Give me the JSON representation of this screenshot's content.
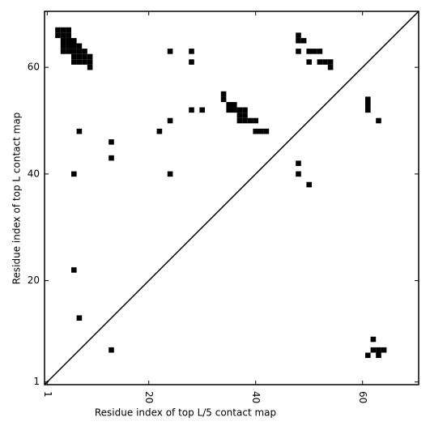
{
  "chart_data": {
    "type": "scatter",
    "x_label": "Residue index of top L/5 contact map",
    "y_label": "Residue index of top L contact map",
    "color": "#000000",
    "x": [
      3,
      4,
      5,
      3,
      4,
      5,
      4,
      5,
      6,
      4,
      5,
      6,
      7,
      4,
      5,
      6,
      7,
      8,
      6,
      7,
      8,
      9,
      6,
      7,
      8,
      9,
      9,
      24,
      28,
      28,
      48,
      48,
      49,
      48,
      50,
      51,
      52,
      50,
      52,
      53,
      54,
      54,
      34,
      34,
      35,
      36,
      35,
      36,
      37,
      38,
      37,
      38,
      37,
      38,
      39,
      40,
      40,
      41,
      42,
      28,
      30,
      24,
      22,
      7,
      13,
      13,
      6,
      24,
      48,
      48,
      50,
      61,
      61,
      61,
      63,
      6,
      7,
      13,
      62,
      62,
      63,
      64,
      61,
      63
    ],
    "y": [
      67,
      67,
      67,
      66,
      66,
      66,
      65,
      65,
      65,
      64,
      64,
      64,
      64,
      63,
      63,
      63,
      63,
      63,
      62,
      62,
      62,
      62,
      61,
      61,
      61,
      61,
      60,
      63,
      63,
      61,
      66,
      65,
      65,
      63,
      63,
      63,
      63,
      61,
      61,
      61,
      61,
      60,
      55,
      54,
      53,
      53,
      52,
      52,
      52,
      52,
      51,
      51,
      50,
      50,
      50,
      50,
      48,
      48,
      48,
      52,
      52,
      50,
      48,
      48,
      46,
      43,
      40,
      40,
      42,
      40,
      38,
      54,
      53,
      52,
      50,
      22,
      13,
      7,
      9,
      7,
      7,
      7,
      6,
      6
    ],
    "xlim": [
      0.5,
      70.5
    ],
    "ylim": [
      0.5,
      70.5
    ],
    "xticks": [
      1,
      20,
      40,
      60
    ],
    "yticks": [
      1,
      20,
      40,
      60
    ]
  }
}
